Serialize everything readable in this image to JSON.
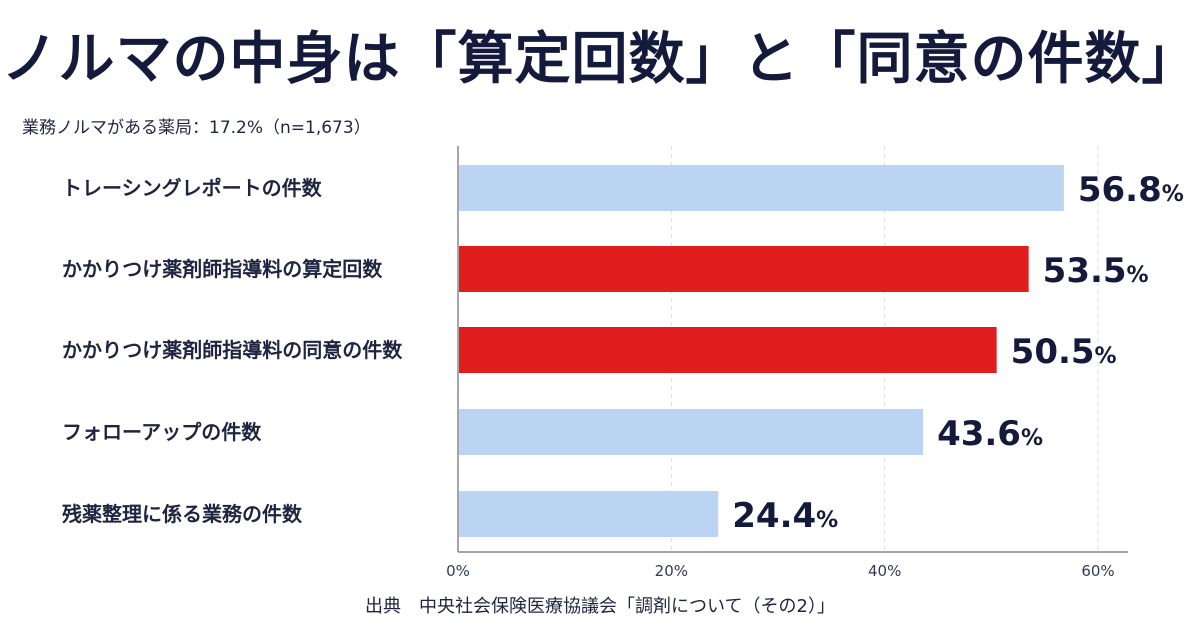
{
  "title": "ノルマの中身は「算定回数」と「同意の件数」",
  "subtitle": "業務ノルマがある薬局：17.2%（n=1,673）",
  "source": "出典　中央社会保険医療協議会「調剤について（その2）」",
  "colors": {
    "highlight": "#e01e1e",
    "normal": "#bcd4f4",
    "axis": "#888888",
    "grid": "#dddddd"
  },
  "chart_data": {
    "type": "bar",
    "orientation": "horizontal",
    "categories": [
      "トレーシングレポートの件数",
      "かかりつけ薬剤師指導料の算定回数",
      "かかりつけ薬剤師指導料の同意の件数",
      "フォローアップの件数",
      "残薬整理に係る業務の件数"
    ],
    "values": [
      56.8,
      53.5,
      50.5,
      43.6,
      24.4
    ],
    "highlighted": [
      false,
      true,
      true,
      false,
      false
    ],
    "value_unit": "%",
    "xlim": [
      0,
      60
    ],
    "xticks": [
      0,
      20,
      40,
      60
    ],
    "xtick_labels": [
      "0%",
      "20%",
      "40%",
      "60%"
    ],
    "grid": true
  }
}
